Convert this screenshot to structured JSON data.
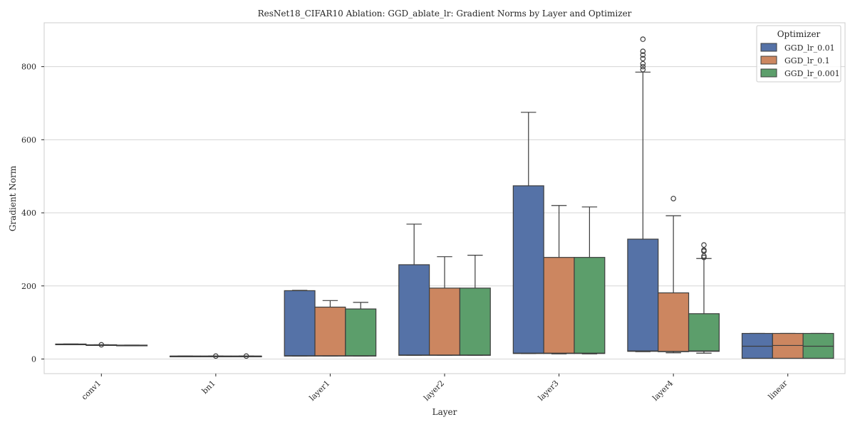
{
  "chart_data": {
    "type": "box",
    "title": "ResNet18_CIFAR10 Ablation: GGD_ablate_lr: Gradient Norms by Layer and Optimizer",
    "xlabel": "Layer",
    "ylabel": "Gradient Norm",
    "categories": [
      "conv1",
      "bn1",
      "layer1",
      "layer2",
      "layer3",
      "layer4",
      "linear"
    ],
    "ylim": [
      -40,
      920
    ],
    "yticks": [
      0,
      200,
      400,
      600,
      800
    ],
    "grid": true,
    "legend": {
      "title": "Optimizer",
      "placement": "top-right"
    },
    "series": [
      {
        "name": "GGD_lr_0.01",
        "color": "#5572a7",
        "boxes": [
          {
            "whislo": 40,
            "q1": 40,
            "med": 40,
            "q3": 41,
            "whishi": 41,
            "fliers": []
          },
          {
            "whislo": 8,
            "q1": 8,
            "med": 8,
            "q3": 8,
            "whishi": 8,
            "fliers": []
          },
          {
            "whislo": 8,
            "q1": 8,
            "med": 9,
            "q3": 187,
            "whishi": 188,
            "fliers": []
          },
          {
            "whislo": 10,
            "q1": 10,
            "med": 11,
            "q3": 258,
            "whishi": 369,
            "fliers": []
          },
          {
            "whislo": 15,
            "q1": 15,
            "med": 16,
            "q3": 474,
            "whishi": 675,
            "fliers": []
          },
          {
            "whislo": 20,
            "q1": 21,
            "med": 22,
            "q3": 328,
            "whishi": 785,
            "fliers": [
              792,
              800,
              808,
              822,
              832,
              842,
              875
            ]
          },
          {
            "whislo": 2,
            "q1": 2,
            "med": 35,
            "q3": 70,
            "whishi": 70,
            "fliers": []
          }
        ]
      },
      {
        "name": "GGD_lr_0.1",
        "color": "#cc8660",
        "boxes": [
          {
            "whislo": 38,
            "q1": 38,
            "med": 38,
            "q3": 39,
            "whishi": 39,
            "fliers": [
              39
            ]
          },
          {
            "whislo": 8,
            "q1": 8,
            "med": 8,
            "q3": 8,
            "whishi": 8,
            "fliers": [
              8
            ]
          },
          {
            "whislo": 8,
            "q1": 8,
            "med": 9,
            "q3": 142,
            "whishi": 160,
            "fliers": []
          },
          {
            "whislo": 10,
            "q1": 10,
            "med": 11,
            "q3": 194,
            "whishi": 280,
            "fliers": []
          },
          {
            "whislo": 14,
            "q1": 15,
            "med": 16,
            "q3": 278,
            "whishi": 420,
            "fliers": []
          },
          {
            "whislo": 17,
            "q1": 20,
            "med": 21,
            "q3": 181,
            "whishi": 392,
            "fliers": [
              439
            ]
          },
          {
            "whislo": 2,
            "q1": 2,
            "med": 37,
            "q3": 70,
            "whishi": 70,
            "fliers": []
          }
        ]
      },
      {
        "name": "GGD_lr_0.001",
        "color": "#5c9e6b",
        "boxes": [
          {
            "whislo": 37,
            "q1": 37,
            "med": 37,
            "q3": 38,
            "whishi": 38,
            "fliers": []
          },
          {
            "whislo": 8,
            "q1": 8,
            "med": 8,
            "q3": 8,
            "whishi": 8,
            "fliers": [
              8
            ]
          },
          {
            "whislo": 8,
            "q1": 8,
            "med": 9,
            "q3": 137,
            "whishi": 155,
            "fliers": []
          },
          {
            "whislo": 10,
            "q1": 10,
            "med": 11,
            "q3": 194,
            "whishi": 284,
            "fliers": []
          },
          {
            "whislo": 14,
            "q1": 15,
            "med": 16,
            "q3": 278,
            "whishi": 416,
            "fliers": []
          },
          {
            "whislo": 16,
            "q1": 21,
            "med": 22,
            "q3": 124,
            "whishi": 275,
            "fliers": [
              278,
              282,
              295,
              298,
              312
            ]
          },
          {
            "whislo": 2,
            "q1": 2,
            "med": 35,
            "q3": 70,
            "whishi": 70,
            "fliers": []
          }
        ]
      }
    ]
  }
}
